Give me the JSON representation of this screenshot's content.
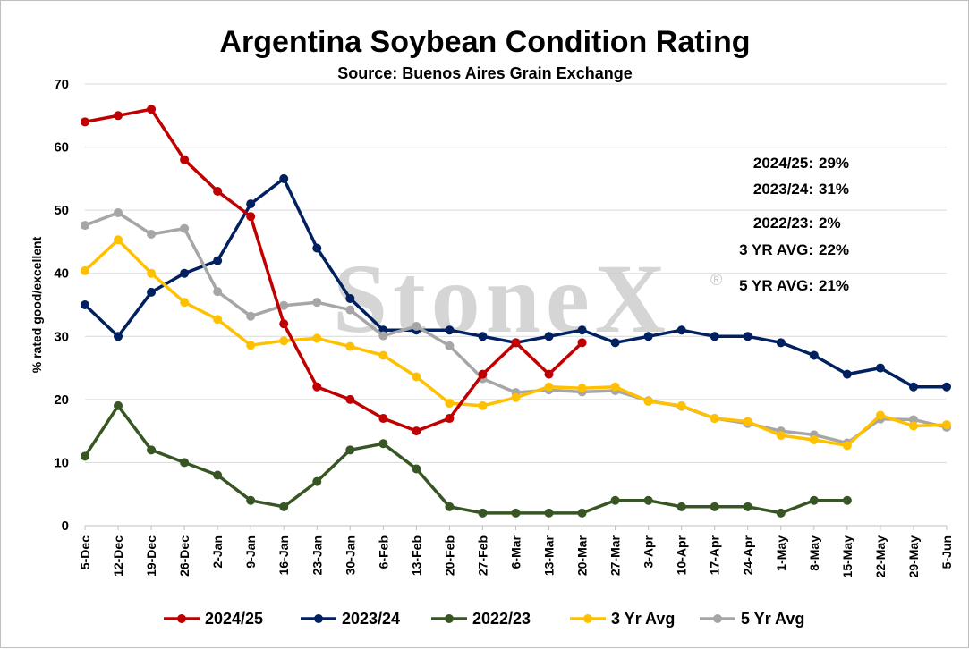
{
  "chart_data": {
    "type": "line",
    "title": "Argentina Soybean Condition Rating",
    "subtitle": "Source: Buenos Aires Grain Exchange",
    "ylabel": "% rated good/excellent",
    "xlabel": "",
    "ylim": [
      0,
      70
    ],
    "yticks": [
      0,
      10,
      20,
      30,
      40,
      50,
      60,
      70
    ],
    "grid": "horizontal",
    "legend_position": "bottom",
    "watermark": "StoneX",
    "categories": [
      "5-Dec",
      "12-Dec",
      "19-Dec",
      "26-Dec",
      "2-Jan",
      "9-Jan",
      "16-Jan",
      "23-Jan",
      "30-Jan",
      "6-Feb",
      "13-Feb",
      "20-Feb",
      "27-Feb",
      "6-Mar",
      "13-Mar",
      "20-Mar",
      "27-Mar",
      "3-Apr",
      "10-Apr",
      "17-Apr",
      "24-Apr",
      "1-May",
      "8-May",
      "15-May",
      "22-May",
      "29-May",
      "5-Jun"
    ],
    "series": [
      {
        "name": "2023/24",
        "color": "#002060",
        "values": [
          35,
          30,
          37,
          40,
          42,
          51,
          55,
          44,
          36,
          31,
          31,
          31,
          30,
          29,
          30,
          31,
          29,
          30,
          31,
          30,
          30,
          29,
          27,
          24,
          25,
          22,
          22
        ]
      },
      {
        "name": "5 Yr Avg",
        "color": "#a6a6a6",
        "values": [
          47.6,
          49.6,
          46.2,
          47.1,
          37.1,
          33.2,
          34.9,
          35.4,
          34.2,
          30.1,
          31.6,
          28.5,
          23.3,
          21.1,
          21.5,
          21.2,
          21.4,
          19.8,
          18.9,
          17.0,
          16.2,
          15.0,
          14.4,
          13.1,
          16.9,
          16.8,
          15.6
        ]
      },
      {
        "name": "3 Yr Avg",
        "color": "#ffc000",
        "values": [
          40.4,
          45.3,
          40.0,
          35.4,
          32.7,
          28.6,
          29.3,
          29.7,
          28.4,
          27.0,
          23.6,
          19.4,
          19.0,
          20.3,
          22.0,
          21.8,
          22.0,
          19.7,
          19.0,
          17.0,
          16.5,
          14.3,
          13.6,
          12.7,
          17.5,
          15.8,
          16.0
        ]
      },
      {
        "name": "2022/23",
        "color": "#375623",
        "values": [
          11,
          19,
          12,
          10,
          8,
          4,
          3,
          7,
          12,
          13,
          9,
          3,
          2,
          2,
          2,
          2,
          4,
          4,
          3,
          3,
          3,
          2,
          4,
          4,
          null,
          null,
          null
        ]
      },
      {
        "name": "2024/25",
        "color": "#c00000",
        "values": [
          64,
          65,
          66,
          58,
          53,
          49,
          32,
          22,
          20,
          17,
          15,
          17,
          24,
          29,
          24,
          29,
          null,
          null,
          null,
          null,
          null,
          null,
          null,
          null,
          null,
          null,
          null
        ]
      }
    ],
    "legend_order": [
      "2024/25",
      "2023/24",
      "2022/23",
      "3 Yr Avg",
      "5 Yr Avg"
    ],
    "annotations": [
      {
        "label": "2024/25:",
        "value": "29%"
      },
      {
        "label": "2023/24:",
        "value": "31%"
      },
      {
        "label": "2022/23:",
        "value": "2%"
      },
      {
        "label": "3 YR AVG:",
        "value": "22%"
      },
      {
        "label": "5 YR AVG:",
        "value": "21%"
      }
    ]
  }
}
